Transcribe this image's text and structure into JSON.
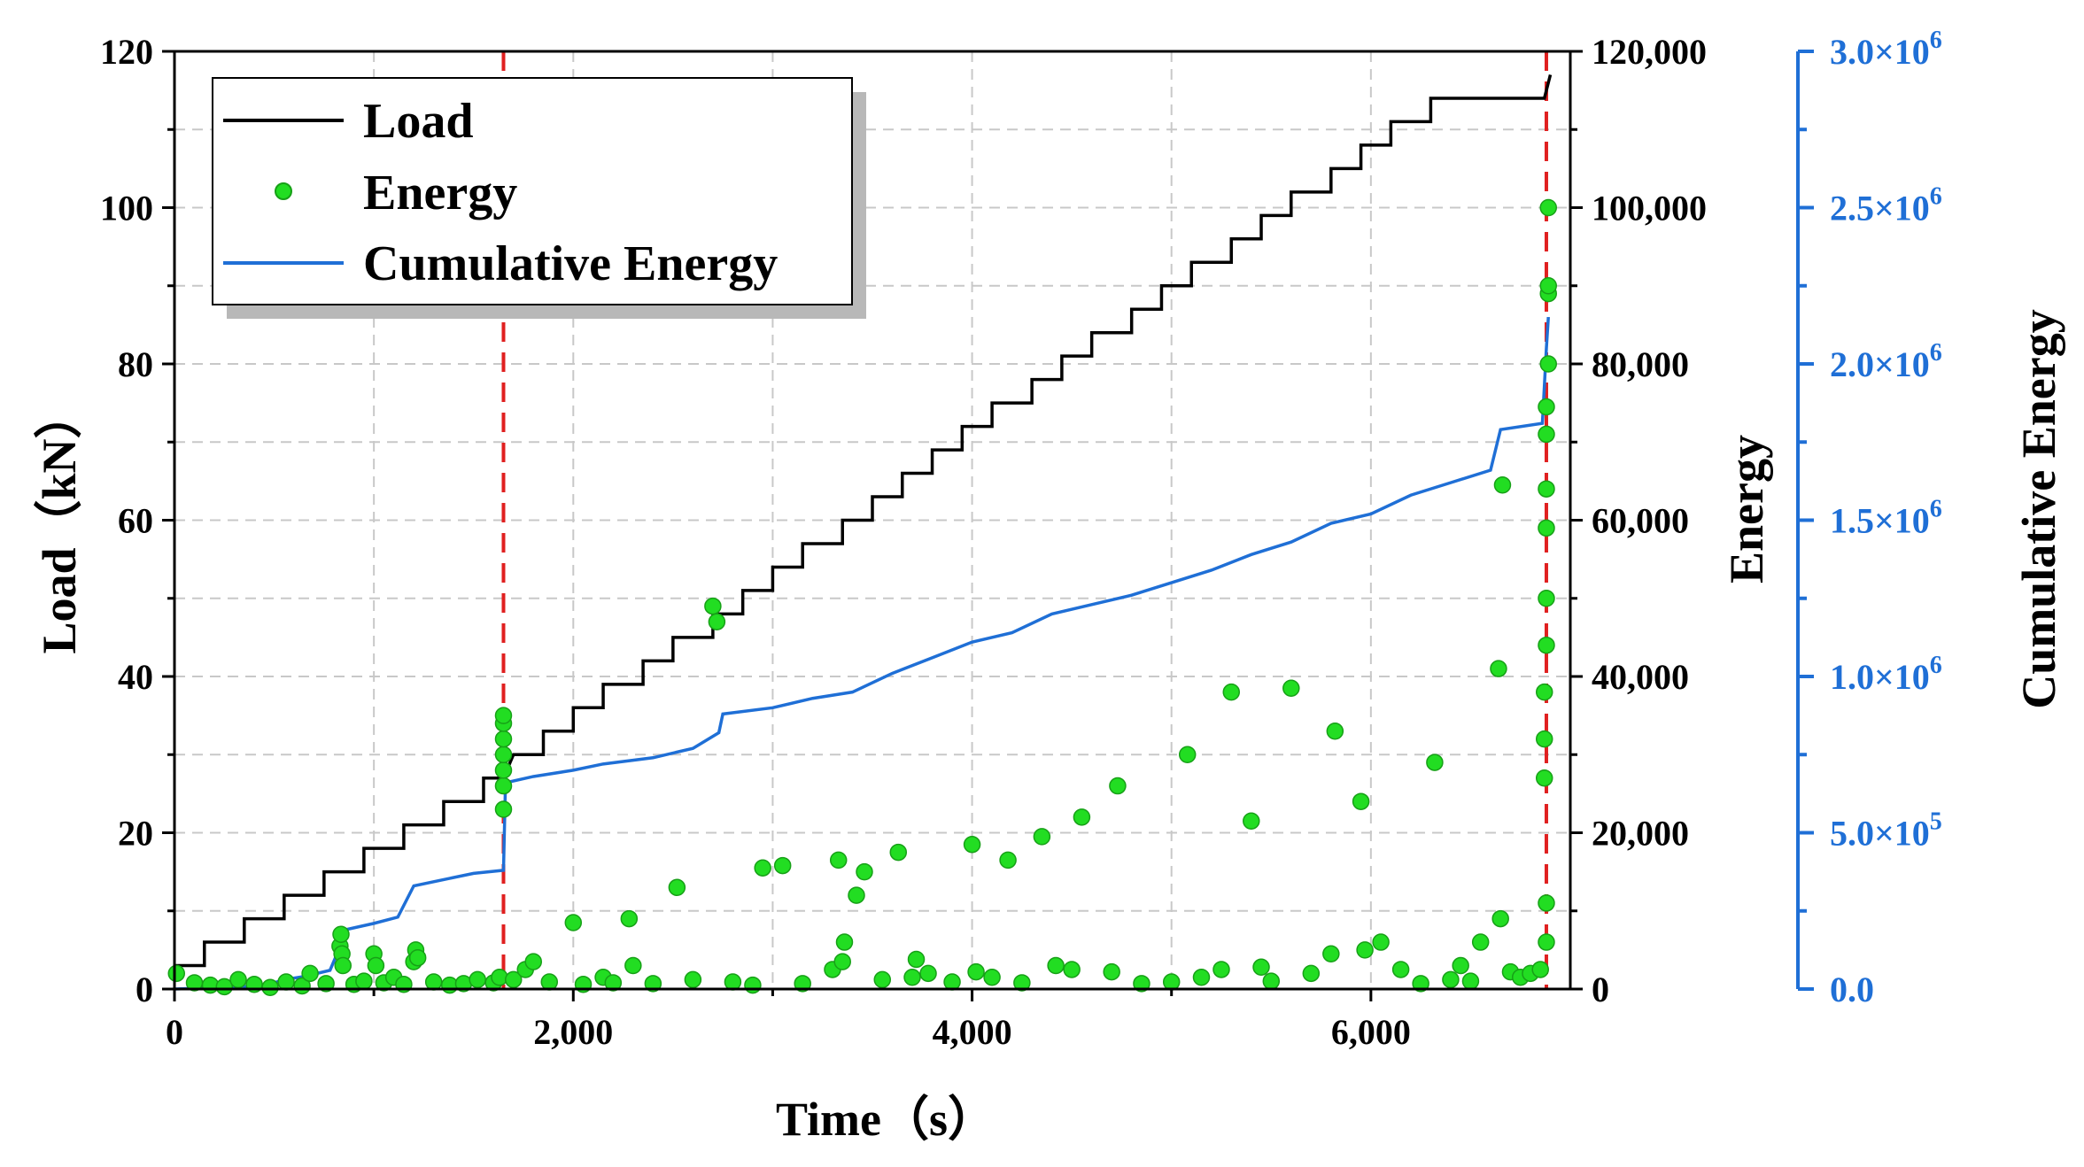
{
  "chart_data": {
    "type": "line",
    "title": "",
    "xlabel": "Time（s）",
    "ylabel_left": "Load（kN）",
    "ylabel_right1": "Energy",
    "ylabel_right2": "Cumulative Energy",
    "xlim": [
      0,
      7000
    ],
    "ylim_left": [
      0,
      120
    ],
    "ylim_right1": [
      0,
      120000
    ],
    "ylim_right2": [
      0,
      3000000
    ],
    "x_ticks": [
      0,
      2000,
      4000,
      6000
    ],
    "x_tick_labels": [
      "0",
      "2,000",
      "4,000",
      "6,000"
    ],
    "left_ticks": [
      0,
      20,
      40,
      60,
      80,
      100,
      120
    ],
    "left_tick_labels": [
      "0",
      "20",
      "40",
      "60",
      "80",
      "100",
      "120"
    ],
    "right1_ticks": [
      0,
      20000,
      40000,
      60000,
      80000,
      100000,
      120000
    ],
    "right1_tick_labels": [
      "0",
      "20,000",
      "40,000",
      "60,000",
      "80,000",
      "100,000",
      "120,000"
    ],
    "right2_ticks": [
      0,
      500000,
      1000000,
      1500000,
      2000000,
      2500000,
      3000000
    ],
    "right2_tick_labels": [
      "0.0",
      "5.0×10",
      "1.0×10",
      "1.5×10",
      "2.0×10",
      "2.5×10",
      "3.0×10"
    ],
    "right2_tick_exponents": [
      "",
      "5",
      "6",
      "6",
      "6",
      "6",
      "6"
    ],
    "grid": true,
    "legend_position": "top-left",
    "vlines": [
      1650,
      6880
    ],
    "colors": {
      "load": "#000000",
      "energy": "#22dd22",
      "cumulative": "#1f6fd6",
      "vline": "#e02020",
      "grid": "#c8c8c8"
    },
    "series": [
      {
        "name": "Load",
        "axis": "left",
        "kind": "step",
        "points": [
          [
            0,
            3
          ],
          [
            150,
            3
          ],
          [
            150,
            6
          ],
          [
            350,
            6
          ],
          [
            350,
            9
          ],
          [
            550,
            9
          ],
          [
            550,
            12
          ],
          [
            750,
            12
          ],
          [
            750,
            15
          ],
          [
            950,
            15
          ],
          [
            950,
            18
          ],
          [
            1150,
            18
          ],
          [
            1150,
            21
          ],
          [
            1350,
            21
          ],
          [
            1350,
            24
          ],
          [
            1550,
            24
          ],
          [
            1550,
            27
          ],
          [
            1650,
            27
          ],
          [
            1700,
            30
          ],
          [
            1850,
            30
          ],
          [
            1850,
            33
          ],
          [
            2000,
            33
          ],
          [
            2000,
            36
          ],
          [
            2150,
            36
          ],
          [
            2150,
            39
          ],
          [
            2350,
            39
          ],
          [
            2350,
            42
          ],
          [
            2500,
            42
          ],
          [
            2500,
            45
          ],
          [
            2700,
            45
          ],
          [
            2700,
            48
          ],
          [
            2850,
            48
          ],
          [
            2850,
            51
          ],
          [
            3000,
            51
          ],
          [
            3000,
            54
          ],
          [
            3150,
            54
          ],
          [
            3150,
            57
          ],
          [
            3350,
            57
          ],
          [
            3350,
            60
          ],
          [
            3500,
            60
          ],
          [
            3500,
            63
          ],
          [
            3650,
            63
          ],
          [
            3650,
            66
          ],
          [
            3800,
            66
          ],
          [
            3800,
            69
          ],
          [
            3950,
            69
          ],
          [
            3950,
            72
          ],
          [
            4100,
            72
          ],
          [
            4100,
            75
          ],
          [
            4300,
            75
          ],
          [
            4300,
            78
          ],
          [
            4450,
            78
          ],
          [
            4450,
            81
          ],
          [
            4600,
            81
          ],
          [
            4600,
            84
          ],
          [
            4800,
            84
          ],
          [
            4800,
            87
          ],
          [
            4950,
            87
          ],
          [
            4950,
            90
          ],
          [
            5100,
            90
          ],
          [
            5100,
            93
          ],
          [
            5300,
            93
          ],
          [
            5300,
            96
          ],
          [
            5450,
            96
          ],
          [
            5450,
            99
          ],
          [
            5600,
            99
          ],
          [
            5600,
            102
          ],
          [
            5800,
            102
          ],
          [
            5800,
            105
          ],
          [
            5950,
            105
          ],
          [
            5950,
            108
          ],
          [
            6100,
            108
          ],
          [
            6100,
            111
          ],
          [
            6300,
            111
          ],
          [
            6300,
            114
          ],
          [
            6500,
            114
          ],
          [
            6500,
            114
          ],
          [
            6870,
            114
          ],
          [
            6900,
            117
          ]
        ]
      },
      {
        "name": "Energy",
        "axis": "right1",
        "kind": "scatter",
        "points": [
          [
            10,
            2000
          ],
          [
            100,
            800
          ],
          [
            180,
            500
          ],
          [
            250,
            300
          ],
          [
            320,
            1200
          ],
          [
            400,
            600
          ],
          [
            480,
            200
          ],
          [
            560,
            900
          ],
          [
            640,
            400
          ],
          [
            680,
            2000
          ],
          [
            760,
            700
          ],
          [
            830,
            5500
          ],
          [
            835,
            7000
          ],
          [
            840,
            4500
          ],
          [
            845,
            3000
          ],
          [
            900,
            600
          ],
          [
            950,
            1000
          ],
          [
            1000,
            4500
          ],
          [
            1010,
            3000
          ],
          [
            1050,
            800
          ],
          [
            1100,
            1500
          ],
          [
            1150,
            600
          ],
          [
            1200,
            3500
          ],
          [
            1210,
            5000
          ],
          [
            1220,
            4000
          ],
          [
            1300,
            900
          ],
          [
            1380,
            500
          ],
          [
            1450,
            700
          ],
          [
            1520,
            1200
          ],
          [
            1600,
            800
          ],
          [
            1630,
            1500
          ],
          [
            1650,
            23000
          ],
          [
            1650,
            26000
          ],
          [
            1650,
            28000
          ],
          [
            1650,
            30000
          ],
          [
            1650,
            32000
          ],
          [
            1650,
            34000
          ],
          [
            1650,
            35000
          ],
          [
            1700,
            1200
          ],
          [
            1760,
            2500
          ],
          [
            1800,
            3500
          ],
          [
            1880,
            900
          ],
          [
            2000,
            8500
          ],
          [
            2050,
            600
          ],
          [
            2150,
            1500
          ],
          [
            2200,
            800
          ],
          [
            2280,
            9000
          ],
          [
            2300,
            3000
          ],
          [
            2400,
            700
          ],
          [
            2520,
            13000
          ],
          [
            2600,
            1200
          ],
          [
            2700,
            49000
          ],
          [
            2720,
            47000
          ],
          [
            2800,
            900
          ],
          [
            2900,
            500
          ],
          [
            2950,
            15500
          ],
          [
            3050,
            15800
          ],
          [
            3150,
            700
          ],
          [
            3300,
            2500
          ],
          [
            3330,
            16500
          ],
          [
            3350,
            3500
          ],
          [
            3360,
            6000
          ],
          [
            3420,
            12000
          ],
          [
            3460,
            15000
          ],
          [
            3550,
            1200
          ],
          [
            3630,
            17500
          ],
          [
            3700,
            1500
          ],
          [
            3720,
            3800
          ],
          [
            3780,
            2000
          ],
          [
            3900,
            900
          ],
          [
            4000,
            18500
          ],
          [
            4020,
            2200
          ],
          [
            4100,
            1500
          ],
          [
            4180,
            16500
          ],
          [
            4250,
            800
          ],
          [
            4350,
            19500
          ],
          [
            4420,
            3000
          ],
          [
            4500,
            2500
          ],
          [
            4550,
            22000
          ],
          [
            4700,
            2200
          ],
          [
            4730,
            26000
          ],
          [
            4850,
            700
          ],
          [
            5000,
            900
          ],
          [
            5080,
            30000
          ],
          [
            5150,
            1500
          ],
          [
            5250,
            2500
          ],
          [
            5300,
            38000
          ],
          [
            5400,
            21500
          ],
          [
            5450,
            2800
          ],
          [
            5500,
            1000
          ],
          [
            5600,
            38500
          ],
          [
            5700,
            2000
          ],
          [
            5800,
            4500
          ],
          [
            5820,
            33000
          ],
          [
            5950,
            24000
          ],
          [
            5970,
            5000
          ],
          [
            6050,
            6000
          ],
          [
            6150,
            2500
          ],
          [
            6250,
            700
          ],
          [
            6320,
            29000
          ],
          [
            6400,
            1200
          ],
          [
            6450,
            3000
          ],
          [
            6500,
            1000
          ],
          [
            6550,
            6000
          ],
          [
            6640,
            41000
          ],
          [
            6650,
            9000
          ],
          [
            6660,
            64500
          ],
          [
            6700,
            2200
          ],
          [
            6750,
            1500
          ],
          [
            6800,
            2000
          ],
          [
            6850,
            2500
          ],
          [
            6870,
            27000
          ],
          [
            6870,
            32000
          ],
          [
            6870,
            38000
          ],
          [
            6880,
            44000
          ],
          [
            6880,
            50000
          ],
          [
            6880,
            59000
          ],
          [
            6880,
            64000
          ],
          [
            6880,
            71000
          ],
          [
            6880,
            74500
          ],
          [
            6890,
            80000
          ],
          [
            6890,
            89000
          ],
          [
            6890,
            90000
          ],
          [
            6890,
            100000
          ],
          [
            6880,
            11000
          ],
          [
            6880,
            6000
          ]
        ]
      },
      {
        "name": "Cumulative Energy",
        "axis": "right2",
        "kind": "step",
        "points": [
          [
            0,
            0
          ],
          [
            450,
            10000
          ],
          [
            550,
            30000
          ],
          [
            650,
            40000
          ],
          [
            780,
            60000
          ],
          [
            820,
            120000
          ],
          [
            860,
            190000
          ],
          [
            1000,
            210000
          ],
          [
            1120,
            230000
          ],
          [
            1200,
            330000
          ],
          [
            1350,
            350000
          ],
          [
            1500,
            370000
          ],
          [
            1650,
            380000
          ],
          [
            1660,
            660000
          ],
          [
            1800,
            680000
          ],
          [
            2000,
            700000
          ],
          [
            2150,
            720000
          ],
          [
            2400,
            740000
          ],
          [
            2600,
            770000
          ],
          [
            2730,
            820000
          ],
          [
            2750,
            880000
          ],
          [
            3000,
            900000
          ],
          [
            3200,
            930000
          ],
          [
            3400,
            950000
          ],
          [
            3600,
            1010000
          ],
          [
            3800,
            1060000
          ],
          [
            4000,
            1110000
          ],
          [
            4200,
            1140000
          ],
          [
            4400,
            1200000
          ],
          [
            4600,
            1230000
          ],
          [
            4800,
            1260000
          ],
          [
            5000,
            1300000
          ],
          [
            5200,
            1340000
          ],
          [
            5400,
            1390000
          ],
          [
            5600,
            1430000
          ],
          [
            5800,
            1490000
          ],
          [
            6000,
            1520000
          ],
          [
            6200,
            1580000
          ],
          [
            6400,
            1620000
          ],
          [
            6600,
            1660000
          ],
          [
            6650,
            1790000
          ],
          [
            6860,
            1810000
          ],
          [
            6880,
            2050000
          ],
          [
            6890,
            2150000
          ]
        ]
      }
    ]
  }
}
